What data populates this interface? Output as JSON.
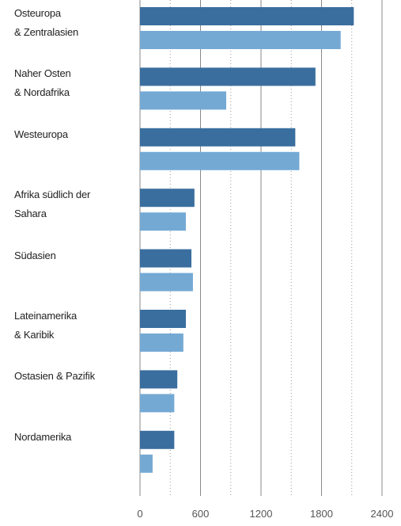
{
  "chart_data": {
    "type": "barh",
    "categories": [
      "Osteuropa\n& Zentralasien",
      "Naher Osten\n& Nordafrika",
      "Westeuropa",
      "Afrika südlich der\nSahara",
      "Südasien",
      "Lateinamerika\n& Karibik",
      "Ostasien & Pazifik",
      "Nordamerika"
    ],
    "series": [
      {
        "color": "#3a6e9e",
        "values": [
          2120,
          1740,
          1540,
          540,
          510,
          455,
          370,
          340
        ]
      },
      {
        "color": "#74a9d4",
        "values": [
          1990,
          855,
          1580,
          455,
          525,
          430,
          340,
          125
        ]
      }
    ],
    "xlim": [
      0,
      2400
    ],
    "xticks": [
      0,
      600,
      1200,
      1800,
      2400
    ],
    "xticks_minor": [
      300,
      900,
      1500,
      2100
    ],
    "grid": true
  }
}
